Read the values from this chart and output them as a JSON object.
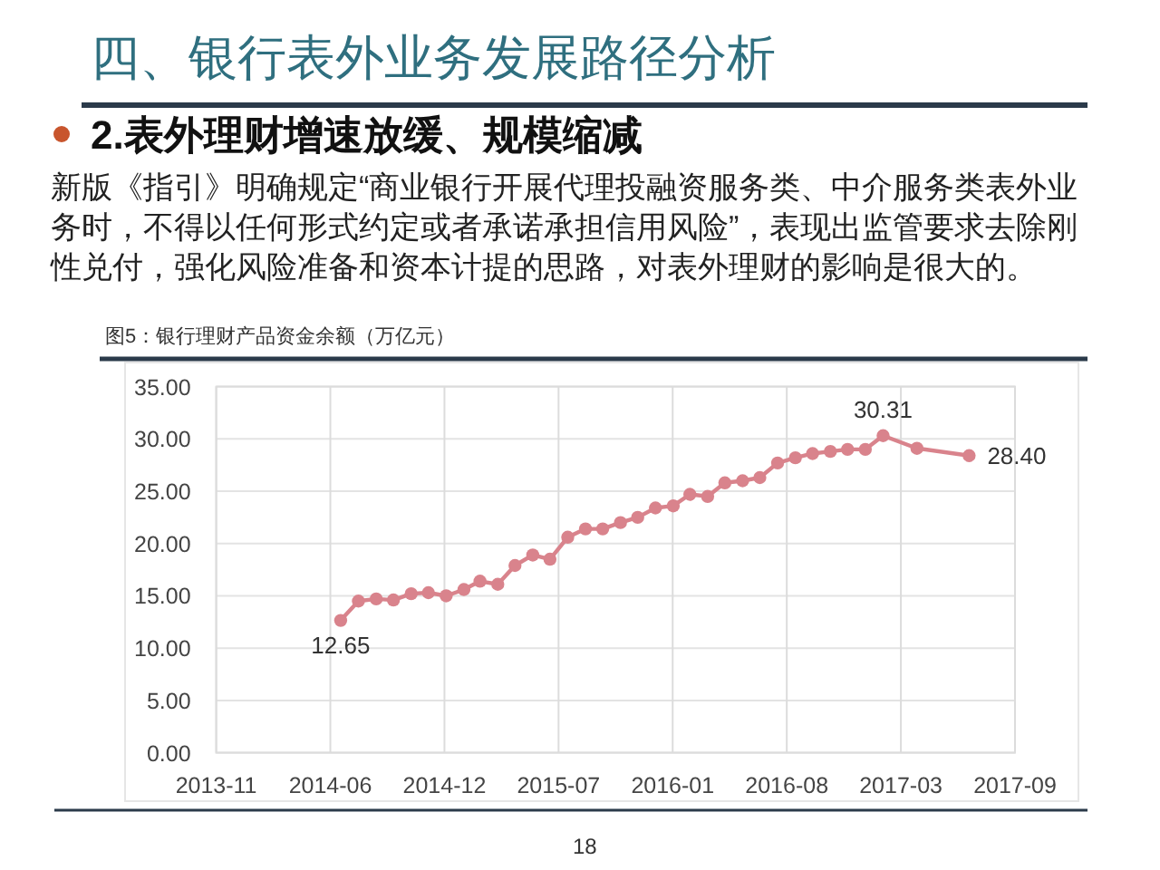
{
  "chart_data": {
    "type": "line",
    "title": "四、银行表外业务发展路径分析",
    "subtitle": "2.表外理财增速放缓、规模缩减",
    "annotations": [
      "新版《指引》明确规定“商业银行开展代理投融资服务类、中介服务类表外业务时，不得以任何形式约定或者承诺承担信用风险”，表现出监管要求去除刚性兑付，强化风险准备和资本计提的思路，对表外理财的影响是很大的。",
      "图5：银行理财产品资金余额（万亿元）",
      "18"
    ],
    "x": [
      "2014-06-30",
      "2014-07-31",
      "2014-08-31",
      "2014-09-30",
      "2014-10-31",
      "2014-11-30",
      "2014-12-31",
      "2015-01-31",
      "2015-02-28",
      "2015-03-31",
      "2015-04-30",
      "2015-05-31",
      "2015-06-30",
      "2015-07-31",
      "2015-08-31",
      "2015-09-30",
      "2015-10-31",
      "2015-11-30",
      "2015-12-31",
      "2016-01-31",
      "2016-02-29",
      "2016-03-31",
      "2016-04-30",
      "2016-05-31",
      "2016-06-30",
      "2016-07-31",
      "2016-08-31",
      "2016-09-30",
      "2016-10-31",
      "2016-11-30",
      "2016-12-31",
      "2017-01-31",
      "2017-03-31",
      "2017-06-30"
    ],
    "series": [
      {
        "color": "#d9838c",
        "values": [
          12.65,
          14.5,
          14.7,
          14.6,
          15.2,
          15.3,
          15.0,
          15.6,
          16.4,
          16.1,
          17.9,
          18.9,
          18.5,
          20.6,
          21.4,
          21.4,
          22.0,
          22.5,
          23.4,
          23.6,
          24.7,
          24.5,
          25.8,
          26.0,
          26.3,
          27.7,
          28.2,
          28.6,
          28.8,
          29.0,
          29.0,
          30.31,
          29.1,
          28.4
        ],
        "value_labels": [
          "12.65",
          null,
          null,
          null,
          null,
          null,
          null,
          null,
          null,
          null,
          null,
          null,
          null,
          null,
          null,
          null,
          null,
          null,
          null,
          null,
          null,
          null,
          null,
          null,
          null,
          null,
          null,
          null,
          null,
          null,
          null,
          "30.31",
          null,
          "28.40"
        ]
      }
    ],
    "xlim": [
      "2013-11-25",
      "2017-09-18"
    ],
    "xticks": [
      {
        "value": "2013-11-25",
        "label": "2013-11"
      },
      {
        "value": "2014-06-12",
        "label": "2014-06"
      },
      {
        "value": "2014-12-28",
        "label": "2014-12"
      },
      {
        "value": "2015-07-15",
        "label": "2015-07"
      },
      {
        "value": "2016-01-30",
        "label": "2016-01"
      },
      {
        "value": "2016-08-16",
        "label": "2016-08"
      },
      {
        "value": "2017-03-03",
        "label": "2017-03"
      },
      {
        "value": "2017-09-18",
        "label": "2017-09"
      }
    ],
    "ylim": [
      0,
      35
    ],
    "yticks": [
      {
        "value": 0,
        "label": "0.00"
      },
      {
        "value": 5,
        "label": "5.00"
      },
      {
        "value": 10,
        "label": "10.00"
      },
      {
        "value": 15,
        "label": "15.00"
      },
      {
        "value": 20,
        "label": "20.00"
      },
      {
        "value": 25,
        "label": "25.00"
      },
      {
        "value": 30,
        "label": "30.00"
      },
      {
        "value": 35,
        "label": "35.00"
      }
    ],
    "grid": true,
    "marker": "circle",
    "line_style": "solid"
  }
}
